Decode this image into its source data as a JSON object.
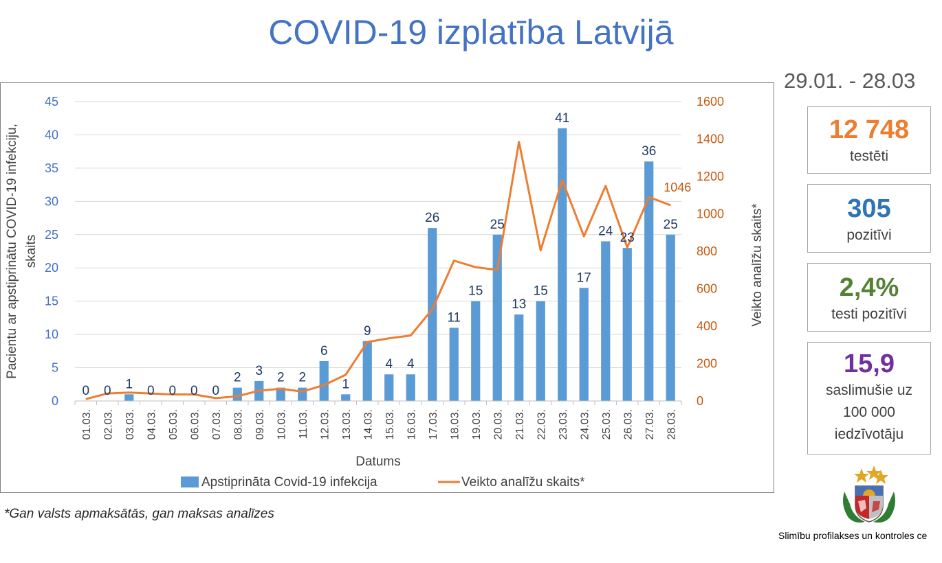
{
  "title": "COVID-19 izplatība Latvijā",
  "footnote": "*Gan valsts apmaksātās, gan maksas analīzes",
  "period": "29.01. - 28.03",
  "stats": [
    {
      "value": "12 748",
      "label": "testēti",
      "color": "#ed7d31"
    },
    {
      "value": "305",
      "label": "pozitīvi",
      "color": "#2e75b6"
    },
    {
      "value": "2,4%",
      "label": "testi pozitīvi",
      "color": "#548235"
    },
    {
      "value": "15,9",
      "label": "saslimušie uz 100 000 iedzīvotāju",
      "color": "#7030a0"
    }
  ],
  "organization": "Slimību profilakses un kontroles ce",
  "chart_data": {
    "type": "bar",
    "categories": [
      "01.03.",
      "02.03.",
      "03.03.",
      "04.03.",
      "05.03.",
      "06.03.",
      "07.03.",
      "08.03.",
      "09.03.",
      "10.03.",
      "11.03.",
      "12.03.",
      "13.03.",
      "14.03.",
      "15.03.",
      "16.03.",
      "17.03.",
      "18.03.",
      "19.03.",
      "20.03.",
      "21.03.",
      "22.03.",
      "23.03.",
      "24.03.",
      "25.03.",
      "26.03.",
      "27.03.",
      "28.03."
    ],
    "series": [
      {
        "name": "Apstiprināta Covid-19 infekcija",
        "type": "bar",
        "axis": "left",
        "color": "#5b9bd5",
        "values": [
          0,
          0,
          1,
          0,
          0,
          0,
          0,
          2,
          3,
          2,
          2,
          6,
          1,
          9,
          4,
          4,
          26,
          11,
          15,
          25,
          13,
          15,
          41,
          17,
          24,
          23,
          36,
          25
        ]
      },
      {
        "name": "Veikto analīžu skaits*",
        "type": "line",
        "axis": "right",
        "color": "#ed7d31",
        "values": [
          10,
          40,
          45,
          40,
          35,
          35,
          15,
          25,
          55,
          65,
          50,
          85,
          140,
          315,
          335,
          350,
          490,
          750,
          715,
          700,
          1385,
          805,
          1180,
          880,
          1150,
          820,
          1090,
          1046
        ]
      }
    ],
    "xlabel": "Datums",
    "ylabel": "Pacientu ar apstiprinātu  COVID-19 infekciju, skaits",
    "ylabel_lines": [
      "Pacientu ar apstiprinātu  COVID-19 infekciju,",
      "skaits"
    ],
    "y2label": "Veikto analīžu skaits*",
    "ylim": [
      0,
      45
    ],
    "y2lim": [
      0,
      1600
    ],
    "yticks": [
      "0",
      "5",
      "10",
      "15",
      "20",
      "25",
      "30",
      "35",
      "40",
      "45"
    ],
    "y2ticks": [
      "0",
      "200",
      "400",
      "600",
      "800",
      "1000",
      "1200",
      "1400",
      "1600"
    ],
    "line_data_label": "1046",
    "grid": true,
    "legend": "bottom",
    "left_axis_color": "#4472c4",
    "right_axis_color": "#c55a11",
    "bar_label_color": "#1f3864"
  }
}
